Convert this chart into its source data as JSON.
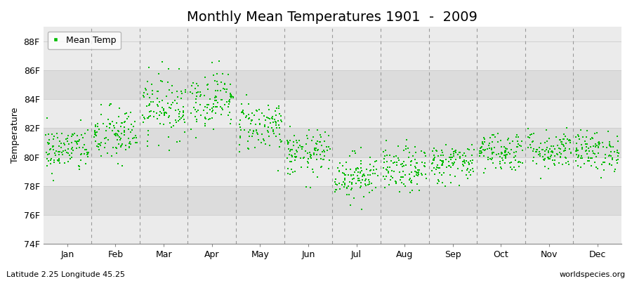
{
  "title": "Monthly Mean Temperatures 1901  -  2009",
  "ylabel": "Temperature",
  "xlabel_months": [
    "Jan",
    "Feb",
    "Mar",
    "Apr",
    "May",
    "Jun",
    "Jul",
    "Aug",
    "Sep",
    "Oct",
    "Nov",
    "Dec"
  ],
  "bottom_left_text": "Latitude 2.25 Longitude 45.25",
  "bottom_right_text": "worldspecies.org",
  "ylim": [
    74,
    89
  ],
  "yticks": [
    74,
    76,
    78,
    80,
    82,
    84,
    86,
    88
  ],
  "ytick_labels": [
    "74F",
    "76F",
    "78F",
    "80F",
    "82F",
    "84F",
    "86F",
    "88F"
  ],
  "marker_color": "#00BB00",
  "background_color": "#FFFFFF",
  "plot_bg_light": "#EBEBEB",
  "plot_bg_dark": "#DCDCDC",
  "vline_color": "#999999",
  "hline_color": "#CCCCCC",
  "num_years": 109,
  "monthly_mean_F": [
    80.5,
    81.5,
    83.5,
    84.0,
    82.2,
    80.2,
    78.7,
    79.1,
    79.6,
    80.4,
    80.5,
    80.4
  ],
  "monthly_std_F": [
    0.8,
    1.0,
    1.1,
    1.0,
    0.9,
    0.8,
    0.8,
    0.8,
    0.7,
    0.7,
    0.7,
    0.7
  ],
  "title_fontsize": 14,
  "axis_label_fontsize": 9,
  "tick_fontsize": 9,
  "legend_marker": "s",
  "legend_label": "Mean Temp",
  "figsize": [
    9.0,
    4.0
  ],
  "dpi": 100,
  "marker_size": 4
}
